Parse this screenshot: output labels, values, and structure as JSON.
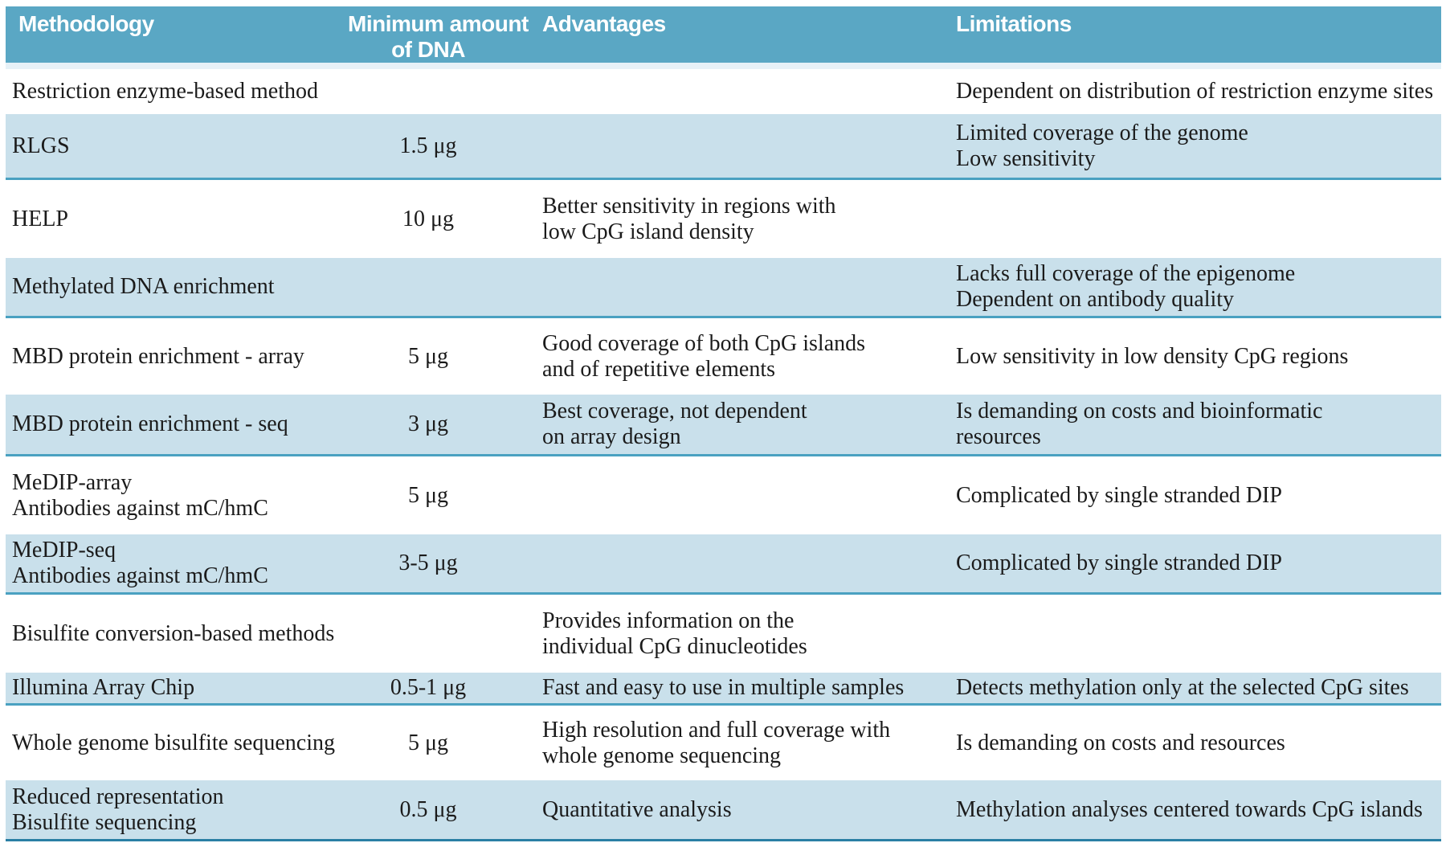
{
  "colors": {
    "header_bg": "#5AA7C4",
    "header_text": "#FFFFFF",
    "header_edge": "#E6F1F7",
    "shaded_row_bg": "#C9E0EB",
    "row_divider_line": "#4AA1C1",
    "table_bottom_line": "#2A7FA4",
    "body_text": "#1B1B1B"
  },
  "table": {
    "header": {
      "methodology": "Methodology",
      "min_dna_line1": "Minimum amount",
      "min_dna_line2": "of DNA",
      "advantages": "Advantages",
      "limitations": "Limitations"
    },
    "rows": [
      {
        "methodology": [
          "Restriction enzyme-based method"
        ],
        "min_dna": "",
        "advantages": [],
        "limitations": [
          "Dependent on distribution of restriction enzyme sites"
        ],
        "shaded": false
      },
      {
        "methodology": [
          "RLGS"
        ],
        "min_dna": "1.5 μg",
        "advantages": [],
        "limitations": [
          "Limited coverage of the genome",
          "Low sensitivity"
        ],
        "shaded": true
      },
      {
        "methodology": [
          "HELP"
        ],
        "min_dna": "10 μg",
        "advantages": [
          "Better sensitivity in regions with",
          "low CpG island density"
        ],
        "limitations": [],
        "shaded": false
      },
      {
        "methodology": [
          "Methylated DNA enrichment"
        ],
        "min_dna": "",
        "advantages": [],
        "limitations": [
          "Lacks full coverage of the epigenome",
          "Dependent on antibody quality"
        ],
        "shaded": true
      },
      {
        "methodology": [
          "MBD protein enrichment - array"
        ],
        "min_dna": "5 μg",
        "advantages": [
          "Good coverage of both CpG islands",
          "and of repetitive elements"
        ],
        "limitations": [
          "Low sensitivity in low density CpG regions"
        ],
        "shaded": false
      },
      {
        "methodology": [
          "MBD protein enrichment - seq"
        ],
        "min_dna": "3 μg",
        "advantages": [
          "Best coverage, not dependent",
          "on array design"
        ],
        "limitations": [
          "Is demanding on costs and bioinformatic",
          "resources"
        ],
        "shaded": true
      },
      {
        "methodology": [
          "MeDIP-array",
          "Antibodies against mC/hmC"
        ],
        "min_dna": "5 μg",
        "advantages": [],
        "limitations": [
          "Complicated by single stranded DIP"
        ],
        "shaded": false
      },
      {
        "methodology": [
          "MeDIP-seq",
          "Antibodies against mC/hmC"
        ],
        "min_dna": "3-5 μg",
        "advantages": [],
        "limitations": [
          "Complicated by single stranded DIP"
        ],
        "shaded": true
      },
      {
        "methodology": [
          "Bisulfite conversion-based methods"
        ],
        "min_dna": "",
        "advantages": [
          "Provides information on the",
          "individual CpG dinucleotides"
        ],
        "limitations": [],
        "shaded": false
      },
      {
        "methodology": [
          "Illumina Array Chip"
        ],
        "min_dna": "0.5-1 μg",
        "advantages": [
          "Fast and easy to use in multiple samples"
        ],
        "limitations": [
          "Detects methylation only at the selected CpG sites"
        ],
        "shaded": true
      },
      {
        "methodology": [
          "Whole genome bisulfite sequencing"
        ],
        "min_dna": "5 μg",
        "advantages": [
          "High resolution and full coverage with",
          "whole genome sequencing"
        ],
        "limitations": [
          "Is demanding on costs and resources"
        ],
        "shaded": false
      },
      {
        "methodology": [
          "Reduced representation",
          "Bisulfite sequencing"
        ],
        "min_dna": "0.5 μg",
        "advantages": [
          "Quantitative analysis"
        ],
        "limitations": [
          "Methylation analyses centered towards CpG islands"
        ],
        "shaded": true
      }
    ]
  }
}
